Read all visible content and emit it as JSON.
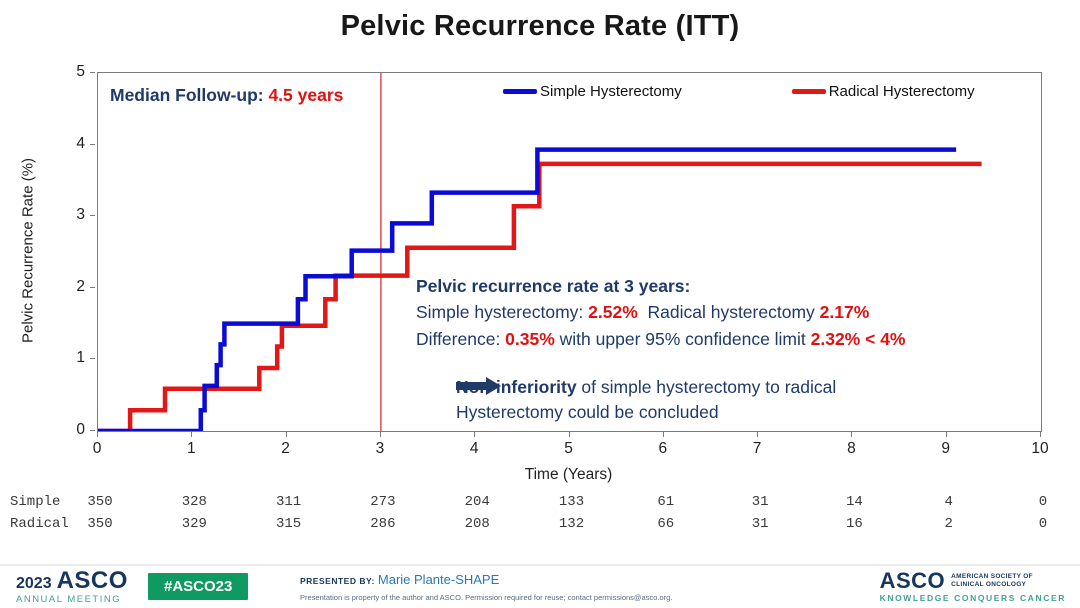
{
  "title": "Pelvic Recurrence Rate (ITT)",
  "median_followup": {
    "label": "Median Follow-up: ",
    "value": "4.5 years"
  },
  "legend": {
    "simple_label": "Simple Hysterectomy",
    "radical_label": "Radical Hysterectomy",
    "simple_color": "#0b0bd6",
    "radical_color": "#e21717"
  },
  "annotation": {
    "heading": "Pelvic recurrence rate at 3 years:",
    "line2_part1": "Simple hysterectomy: ",
    "line2_value1": "2.52%",
    "line2_part2": "  Radical hysterectomy ",
    "line2_value2": "2.17%",
    "line3_part1": "Difference: ",
    "line3_value1": "0.35%",
    "line3_part2": " with upper 95% confidence limit ",
    "line3_value2": "2.32% < 4%"
  },
  "conclusion": {
    "bold": "Non-inferiority",
    "rest1": " of simple hysterectomy to radical",
    "rest2": "Hysterectomy could be concluded",
    "arrow_color": "#1f3a68"
  },
  "chart_data": {
    "type": "line",
    "subtype": "kaplan-meier-step",
    "title": "Pelvic Recurrence Rate (ITT)",
    "xlabel": "Time (Years)",
    "ylabel": "Pelvic Recurrence Rate (%)",
    "xlim": [
      0,
      10
    ],
    "ylim": [
      0,
      5
    ],
    "x_ticks": [
      0,
      1,
      2,
      3,
      4,
      5,
      6,
      7,
      8,
      9,
      10
    ],
    "y_ticks": [
      0,
      1,
      2,
      3,
      4,
      5
    ],
    "grid": false,
    "legend_position": "top-inside",
    "reference_line_x": 3,
    "reference_line_color": "#e23030",
    "series": [
      {
        "name": "Simple Hysterectomy",
        "color": "#0b0bd6",
        "end_x": 9.1,
        "steps": [
          [
            0,
            0
          ],
          [
            1.09,
            0.29
          ],
          [
            1.13,
            0.63
          ],
          [
            1.26,
            0.92
          ],
          [
            1.3,
            1.21
          ],
          [
            1.34,
            1.5
          ],
          [
            2.12,
            1.84
          ],
          [
            2.2,
            2.16
          ],
          [
            2.69,
            2.52
          ],
          [
            3.12,
            2.9
          ],
          [
            3.54,
            3.33
          ],
          [
            4.66,
            3.93
          ]
        ]
      },
      {
        "name": "Radical Hysterectomy",
        "color": "#e21717",
        "end_x": 9.37,
        "steps": [
          [
            0,
            0
          ],
          [
            0.34,
            0.29
          ],
          [
            0.71,
            0.59
          ],
          [
            1.71,
            0.88
          ],
          [
            1.9,
            1.18
          ],
          [
            1.95,
            1.47
          ],
          [
            2.41,
            1.84
          ],
          [
            2.52,
            2.17
          ],
          [
            3.28,
            2.56
          ],
          [
            4.41,
            3.14
          ],
          [
            4.68,
            3.73
          ]
        ]
      }
    ]
  },
  "risk_table": {
    "rows": [
      {
        "label": "Simple",
        "values": [
          350,
          328,
          311,
          273,
          204,
          133,
          61,
          31,
          14,
          4,
          0
        ]
      },
      {
        "label": "Radical",
        "values": [
          350,
          329,
          315,
          286,
          208,
          132,
          66,
          31,
          16,
          2,
          0
        ]
      }
    ]
  },
  "footer": {
    "year": "2023",
    "asco": "ASCO",
    "meeting": "ANNUAL MEETING",
    "hashtag": "#ASCO23",
    "presented_label": "PRESENTED BY:",
    "presented_name": "Marie Plante-SHAPE",
    "disclaimer": "Presentation is property of the author and ASCO. Permission required for reuse; contact permissions@asco.org.",
    "right_asco": "ASCO",
    "right_society1": "AMERICAN SOCIETY OF",
    "right_society2": "CLINICAL ONCOLOGY",
    "right_slogan": "KNOWLEDGE CONQUERS CANCER",
    "badge_color": "#0f9a62",
    "teal_color": "#45a094",
    "navy_color": "#16355f"
  }
}
